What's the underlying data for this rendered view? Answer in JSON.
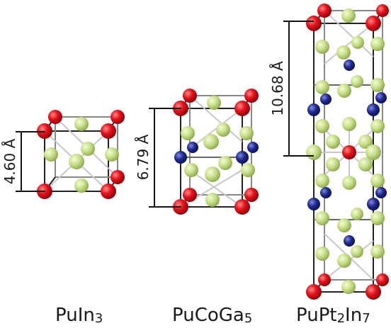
{
  "structures": [
    {
      "id": "puin3",
      "formula_main": "PuIn",
      "formula_sub": "3",
      "formula_tail": "",
      "formula_tail_sub": "",
      "lattice_label": "4.60 Å"
    },
    {
      "id": "pucoga5",
      "formula_main": "PuCoGa",
      "formula_sub": "5",
      "formula_tail": "",
      "formula_tail_sub": "",
      "lattice_label": "6.79 Å"
    },
    {
      "id": "puptin7",
      "formula_main": "PuPt",
      "formula_sub": "2",
      "formula_tail": "In",
      "formula_tail_sub": "7",
      "lattice_label": "10.68 Å"
    }
  ],
  "colors": {
    "pu": "#e0141e",
    "green": "#c8e08a",
    "blue": "#1f2a8c",
    "frame": "#222222",
    "bond": "#cccccc"
  }
}
